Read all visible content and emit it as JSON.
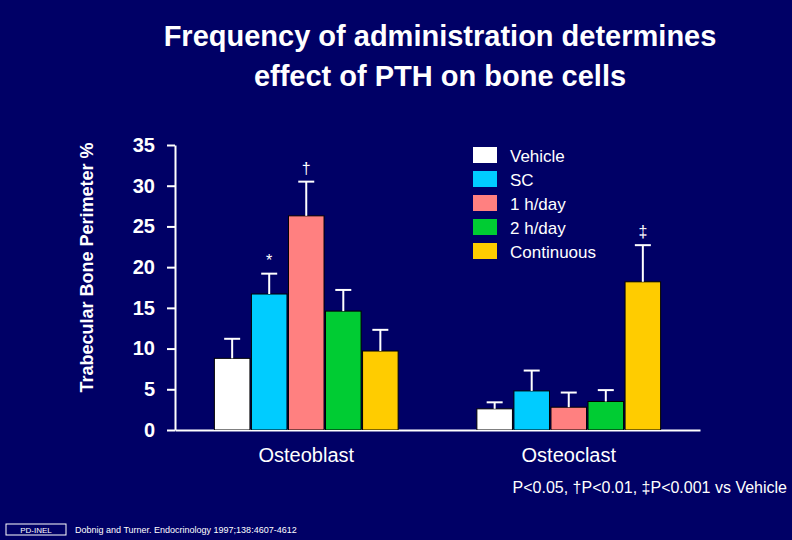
{
  "chart_data": {
    "type": "bar",
    "title": [
      "Frequency of administration determines",
      "effect of PTH on bone cells"
    ],
    "y_label": "Trabecular Bone Perimeter %",
    "categories": [
      "Osteoblast",
      "Osteoclast"
    ],
    "series": [
      {
        "name": "Vehicle",
        "color": "#ffffff",
        "values": [
          8.8,
          2.6
        ],
        "errors": [
          2.4,
          0.8
        ]
      },
      {
        "name": "SC",
        "color": "#00ccff",
        "values": [
          16.7,
          4.8
        ],
        "errors": [
          2.5,
          2.5
        ]
      },
      {
        "name": "1 h/day",
        "color": "#ff8080",
        "values": [
          26.3,
          2.8
        ],
        "errors": [
          4.2,
          1.8
        ]
      },
      {
        "name": "2 h/day",
        "color": "#00cc33",
        "values": [
          14.6,
          3.5
        ],
        "errors": [
          2.6,
          1.4
        ]
      },
      {
        "name": "Continuous",
        "color": "#ffcc00",
        "values": [
          9.7,
          18.2
        ],
        "errors": [
          2.6,
          4.5
        ]
      }
    ],
    "annotations": [
      {
        "text": "*",
        "category": "Osteoblast",
        "series": "SC"
      },
      {
        "text": "†",
        "category": "Osteoblast",
        "series": "1 h/day"
      },
      {
        "text": "‡",
        "category": "Osteoclast",
        "series": "Continuous"
      }
    ],
    "footnote": "P<0.05, †P<0.01, ‡P<0.001 vs Vehicle",
    "source": "Dobnig and Turner. Endocrinology 1997;138:4607-4612",
    "logo": "PD-INEL",
    "ylim": [
      0,
      35
    ],
    "yticks": [
      0,
      5,
      10,
      15,
      20,
      25,
      30,
      35
    ],
    "legend": "top-right",
    "grid": false
  }
}
